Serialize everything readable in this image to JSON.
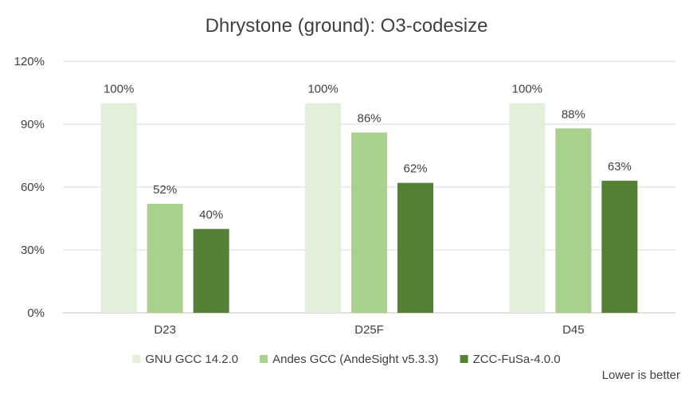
{
  "chart_data": {
    "type": "bar",
    "title": "Dhrystone (ground): O3-codesize",
    "xlabel": "",
    "ylabel": "",
    "categories": [
      "D23",
      "D25F",
      "D45"
    ],
    "ylim": [
      0,
      120
    ],
    "yticks": [
      0,
      30,
      60,
      90,
      120
    ],
    "ytick_labels": [
      "0%",
      "30%",
      "60%",
      "90%",
      "120%"
    ],
    "value_suffix": "%",
    "grid": true,
    "legend_position": "bottom",
    "series": [
      {
        "name": "GNU GCC 14.2.0",
        "color": "#e2efda",
        "values": [
          100,
          100,
          100
        ]
      },
      {
        "name": "Andes GCC (AndeSight v5.3.3)",
        "color": "#a9d18e",
        "values": [
          52,
          86,
          88
        ]
      },
      {
        "name": "ZCC-FuSa-4.0.0",
        "color": "#538135",
        "values": [
          40,
          62,
          63
        ]
      }
    ],
    "annotation": "Lower is better"
  }
}
